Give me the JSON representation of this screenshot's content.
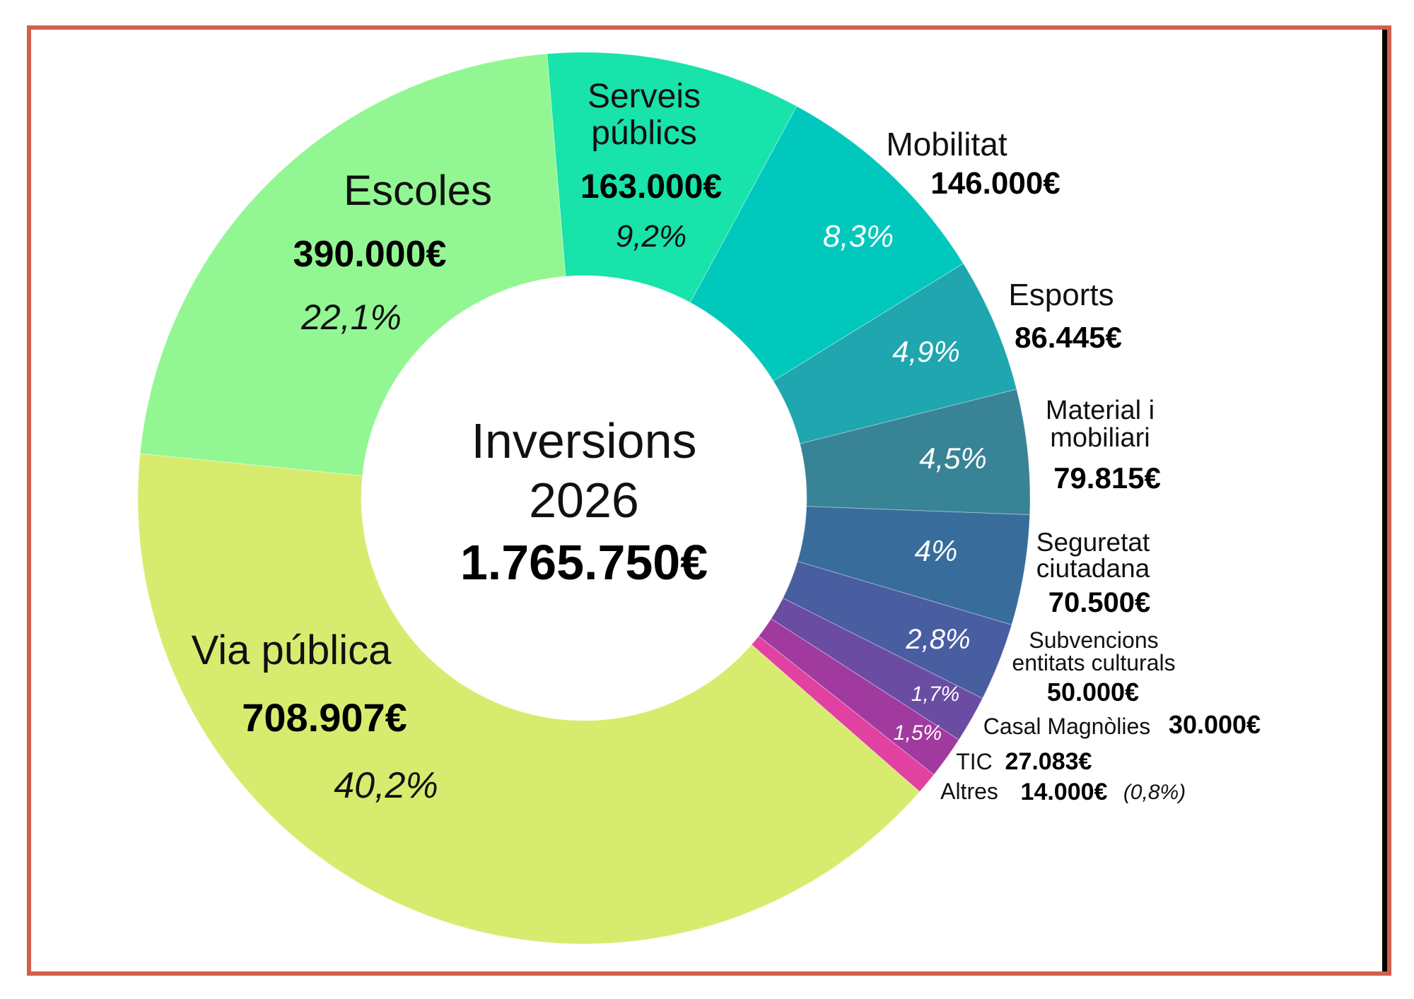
{
  "chart_data": {
    "type": "pie",
    "donut": true,
    "center_title": "Inversions",
    "center_year": "2026",
    "center_total": "1.765.750€",
    "slices": [
      {
        "name_lines": [
          "Serveis",
          "públics"
        ],
        "value": 163000,
        "value_label": "163.000€",
        "percent_label": "9,2%",
        "color": "#17e3aa"
      },
      {
        "name_lines": [
          "Mobilitat"
        ],
        "value": 146000,
        "value_label": "146.000€",
        "percent_label": "8,3%",
        "color": "#00c8bc"
      },
      {
        "name_lines": [
          "Esports"
        ],
        "value": 86445,
        "value_label": "86.445€",
        "percent_label": "4,9%",
        "color": "#1fa6ae"
      },
      {
        "name_lines": [
          "Material i",
          "mobiliari"
        ],
        "value": 79815,
        "value_label": "79.815€",
        "percent_label": "4,5%",
        "color": "#388395"
      },
      {
        "name_lines": [
          "Seguretat",
          "ciutadana"
        ],
        "value": 70500,
        "value_label": "70.500€",
        "percent_label": "4%",
        "color": "#386d9b"
      },
      {
        "name_lines": [
          "Subvencions",
          "entitats culturals"
        ],
        "value": 50000,
        "value_label": "50.000€",
        "percent_label": "2,8%",
        "color": "#495da1"
      },
      {
        "name_lines": [
          "Casal Magnòlies"
        ],
        "value": 30000,
        "value_label": "30.000€",
        "percent_label": "1,7%",
        "color": "#6a4ca2"
      },
      {
        "name_lines": [
          "TIC"
        ],
        "value": 27083,
        "value_label": "27.083€",
        "percent_label": "1,5%",
        "color": "#a13a9f"
      },
      {
        "name_lines": [
          "Altres"
        ],
        "value": 14000,
        "value_label": "14.000€",
        "percent_label": "(0,8%)",
        "color": "#e141a0"
      },
      {
        "name_lines": [
          "Via pública"
        ],
        "value": 708907,
        "value_label": "708.907€",
        "percent_label": "40,2%",
        "color": "#d7ec6f"
      },
      {
        "name_lines": [
          "Escoles"
        ],
        "value": 390000,
        "value_label": "390.000€",
        "percent_label": "22,1%",
        "color": "#92f792"
      }
    ]
  }
}
